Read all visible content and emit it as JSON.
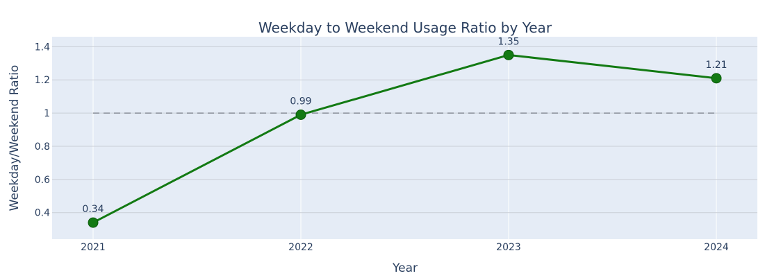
{
  "chart_data": {
    "type": "line",
    "title": "Weekday to Weekend Usage Ratio by Year",
    "xlabel": "Year",
    "ylabel": "Weekday/Weekend Ratio",
    "x": [
      "2021",
      "2022",
      "2023",
      "2024"
    ],
    "series": [
      {
        "values": [
          0.34,
          0.99,
          1.35,
          1.21
        ],
        "labels": [
          "0.34",
          "0.99",
          "1.35",
          "1.21"
        ]
      }
    ],
    "ylim": [
      0.24,
      1.46
    ],
    "y_ticks": [
      0.4,
      0.6,
      0.8,
      1.0,
      1.2,
      1.4
    ],
    "y_tick_labels": [
      "0.4",
      "0.6",
      "0.8",
      "1",
      "1.2",
      "1.4"
    ],
    "reference_line": {
      "y": 1.0,
      "style": "dashed"
    },
    "grid": true,
    "colors": {
      "line": "#137a13",
      "marker": "#137a13",
      "plot_bg": "#e5ecf6",
      "grid": "#c9ced6",
      "reference": "#8a8f99"
    }
  }
}
